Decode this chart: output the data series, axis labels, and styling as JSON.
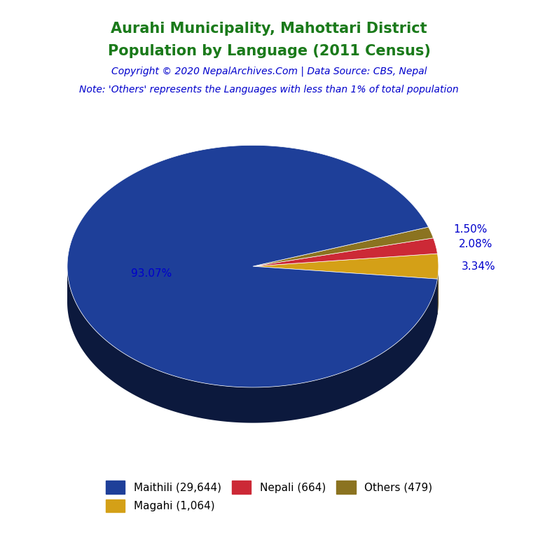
{
  "title_line1": "Aurahi Municipality, Mahottari District",
  "title_line2": "Population by Language (2011 Census)",
  "copyright": "Copyright © 2020 NepalArchives.Com | Data Source: CBS, Nepal",
  "note": "Note: 'Others' represents the Languages with less than 1% of total population",
  "labels": [
    "Maithili (29,644)",
    "Magahi (1,064)",
    "Nepali (664)",
    "Others (479)"
  ],
  "values": [
    29644,
    1064,
    664,
    479
  ],
  "percentages": [
    "93.07%",
    "3.34%",
    "2.08%",
    "1.50%"
  ],
  "pct_positions": [
    "left_inside",
    "right_outside_bottom",
    "right_outside_mid",
    "right_outside_top"
  ],
  "colors": [
    "#1e3f99",
    "#d4a017",
    "#cc2936",
    "#8b7320"
  ],
  "shadow_color": "#0a0a4a",
  "title_color": "#1a7a1a",
  "copyright_color": "#0000cc",
  "note_color": "#0000cc",
  "pct_label_color": "#0000cc",
  "background_color": "#ffffff",
  "startangle": 0,
  "depth_ratio": 0.35,
  "n_depth_layers": 30
}
